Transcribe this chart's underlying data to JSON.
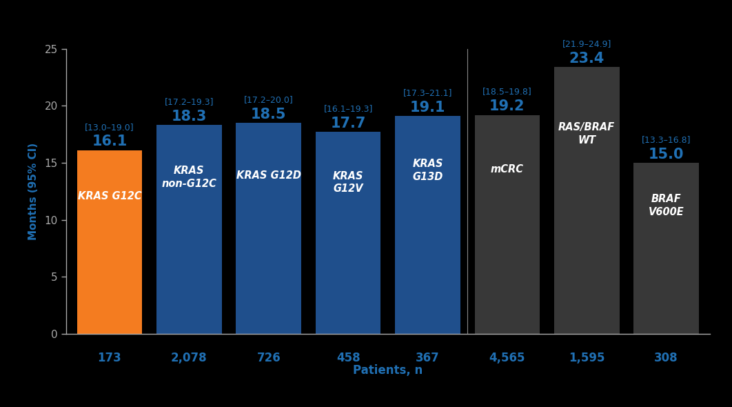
{
  "categories": [
    "KRAS G12C",
    "KRAS\nnon-G12C",
    "KRAS G12D",
    "KRAS\nG12V",
    "KRAS\nG13D",
    "mCRC",
    "RAS/BRAF\nWT",
    "BRAF\nV600E"
  ],
  "values": [
    16.1,
    18.3,
    18.5,
    17.7,
    19.1,
    19.2,
    23.4,
    15.0
  ],
  "ci_labels": [
    "[13.0–19.0]",
    "[17.2–19.3]",
    "[17.2–20.0]",
    "[16.1–19.3]",
    "[17.3–21.1]",
    "[18.5–19.8]",
    "[21.9–24.9]",
    "[13.3–16.8]"
  ],
  "patient_ns": [
    "173",
    "2,078",
    "726",
    "458",
    "367",
    "4,565",
    "1,595",
    "308"
  ],
  "bar_colors": [
    "#F47C20",
    "#1F4F8C",
    "#1F4F8C",
    "#1F4F8C",
    "#1F4F8C",
    "#383838",
    "#383838",
    "#383838"
  ],
  "bar_labels": [
    "KRAS G12C",
    "KRAS\nnon-G12C",
    "KRAS G12D",
    "KRAS\nG12V",
    "KRAS\nG13D",
    "mCRC",
    "RAS/BRAF\nWT",
    "BRAF\nV600E"
  ],
  "ylabel": "Months (95% CI)",
  "xlabel": "Patients, n",
  "ylim": [
    0,
    25
  ],
  "yticks": [
    0,
    5,
    10,
    15,
    20,
    25
  ],
  "background_color": "#000000",
  "tick_color": "#AAAAAA",
  "axis_color": "#AAAAAA",
  "blue_accent": "#2070B4",
  "value_fontsize": 15,
  "ci_fontsize": 9,
  "bar_label_fontsize": 10.5,
  "xlabel_fontsize": 12,
  "ylabel_fontsize": 11,
  "n_label_fontsize": 12,
  "separator_idx": 4.5
}
